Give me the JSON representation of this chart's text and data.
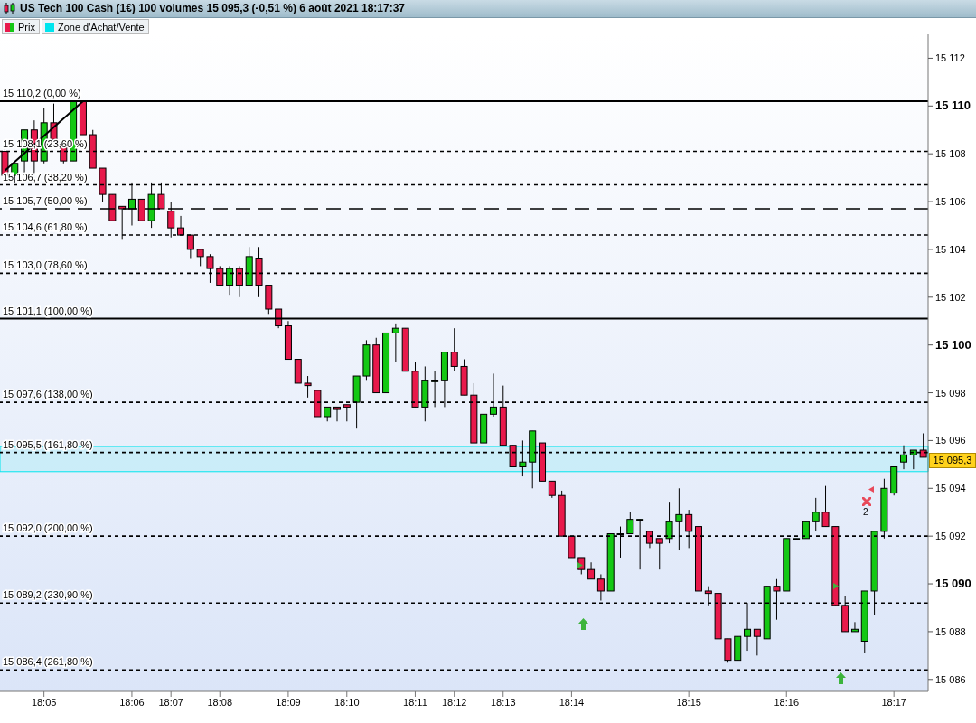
{
  "chart_data": {
    "type": "candlestick",
    "title": "US Tech 100 Cash (1€) 100 volumes 15 095,3 (-0,51 %) 6 août 2021 18:17:37",
    "categories": [
      null,
      null,
      null,
      null,
      "18:05",
      null,
      null,
      null,
      null,
      null,
      null,
      null,
      null,
      "18:06",
      null,
      null,
      null,
      "18:07",
      null,
      null,
      null,
      null,
      "18:08",
      null,
      null,
      null,
      null,
      null,
      null,
      "18:09",
      null,
      null,
      null,
      null,
      null,
      "18:10",
      null,
      null,
      null,
      null,
      null,
      null,
      "18:11",
      null,
      null,
      null,
      "18:12",
      null,
      null,
      null,
      null,
      "18:13",
      null,
      null,
      null,
      null,
      null,
      null,
      "18:14",
      null,
      null,
      null,
      null,
      null,
      null,
      null,
      null,
      null,
      null,
      null,
      "18:15",
      null,
      null,
      null,
      null,
      null,
      null,
      null,
      null,
      null,
      "18:16",
      null,
      null,
      null,
      null,
      null,
      null,
      null,
      null,
      null,
      null,
      "18:17",
      null,
      null,
      null
    ],
    "series": [
      {
        "type": "candlestick",
        "name": "Prix",
        "ohlc": [
          [
            15108.1,
            15108.2,
            15106.9,
            15107.1
          ],
          [
            15107.1,
            15107.6,
            15106.8,
            15107.6
          ],
          [
            15107.7,
            15109.0,
            15107.2,
            15109.0
          ],
          [
            15109.0,
            15109.4,
            15107.2,
            15107.7
          ],
          [
            15107.7,
            15109.9,
            15107.6,
            15109.3
          ],
          [
            15109.3,
            15110.1,
            15108.5,
            15108.6
          ],
          [
            15108.4,
            15108.5,
            15107.6,
            15107.7
          ],
          [
            15107.7,
            15110.2,
            15107.7,
            15110.2
          ],
          [
            15110.2,
            15110.2,
            15108.8,
            15108.8
          ],
          [
            15108.8,
            15109.0,
            15107.4,
            15107.4
          ],
          [
            15107.4,
            15107.4,
            15106.0,
            15106.3
          ],
          [
            15106.3,
            15106.3,
            15105.2,
            15105.2
          ],
          [
            15105.8,
            15105.8,
            15104.4,
            15105.7
          ],
          [
            15105.7,
            15106.8,
            15105.0,
            15106.1
          ],
          [
            15106.1,
            15106.1,
            15105.2,
            15105.2
          ],
          [
            15105.2,
            15106.8,
            15104.9,
            15106.3
          ],
          [
            15106.3,
            15106.8,
            15105.7,
            15105.7
          ],
          [
            15105.6,
            15106.0,
            15104.5,
            15104.9
          ],
          [
            15104.9,
            15105.4,
            15104.6,
            15104.6
          ],
          [
            15104.6,
            15104.6,
            15103.6,
            15104.0
          ],
          [
            15104.0,
            15104.0,
            15103.3,
            15103.7
          ],
          [
            15103.7,
            15103.8,
            15102.6,
            15103.2
          ],
          [
            15103.2,
            15103.3,
            15102.5,
            15102.5
          ],
          [
            15102.5,
            15103.3,
            15102.1,
            15103.2
          ],
          [
            15103.2,
            15103.3,
            15102.0,
            15102.5
          ],
          [
            15102.5,
            15104.1,
            15102.5,
            15103.7
          ],
          [
            15103.6,
            15104.1,
            15102.0,
            15102.5
          ],
          [
            15102.5,
            15102.5,
            15101.3,
            15101.5
          ],
          [
            15101.5,
            15101.5,
            15100.7,
            15100.8
          ],
          [
            15100.8,
            15101.0,
            15099.4,
            15099.4
          ],
          [
            15099.4,
            15099.4,
            15098.4,
            15098.4
          ],
          [
            15098.4,
            15098.7,
            15097.8,
            15098.3
          ],
          [
            15098.1,
            15098.1,
            15097.0,
            15097.0
          ],
          [
            15097.0,
            15097.4,
            15096.8,
            15097.4
          ],
          [
            15097.4,
            15097.4,
            15096.8,
            15097.3
          ],
          [
            15097.5,
            15097.5,
            15096.8,
            15097.4
          ],
          [
            15097.6,
            15098.7,
            15096.5,
            15098.7
          ],
          [
            15098.7,
            15100.2,
            15098.5,
            15100.0
          ],
          [
            15100.0,
            15100.3,
            15098.0,
            15098.0
          ],
          [
            15098.0,
            15100.5,
            15098.0,
            15100.5
          ],
          [
            15100.5,
            15100.9,
            15099.3,
            15100.7
          ],
          [
            15100.7,
            15100.7,
            15098.9,
            15098.9
          ],
          [
            15098.9,
            15099.3,
            15097.4,
            15097.4
          ],
          [
            15097.4,
            15099.1,
            15096.8,
            15098.5
          ],
          [
            15098.5,
            15098.9,
            15097.4,
            15098.5
          ],
          [
            15098.5,
            15099.7,
            15097.4,
            15099.7
          ],
          [
            15099.7,
            15100.7,
            15098.9,
            15099.1
          ],
          [
            15099.1,
            15099.4,
            15097.9,
            15097.9
          ],
          [
            15097.9,
            15098.4,
            15095.9,
            15095.9
          ],
          [
            15095.9,
            15097.1,
            15095.9,
            15097.1
          ],
          [
            15097.1,
            15098.8,
            15097.0,
            15097.4
          ],
          [
            15097.4,
            15098.3,
            15095.8,
            15095.8
          ],
          [
            15095.8,
            15095.8,
            15094.9,
            15094.9
          ],
          [
            15094.9,
            15096.0,
            15094.5,
            15095.1
          ],
          [
            15095.1,
            15096.4,
            15094.0,
            15096.4
          ],
          [
            15095.9,
            15095.9,
            15094.3,
            15094.3
          ],
          [
            15094.3,
            15094.3,
            15093.6,
            15093.7
          ],
          [
            15093.7,
            15093.9,
            15092.0,
            15092.0
          ],
          [
            15092.0,
            15092.0,
            15091.1,
            15091.1
          ],
          [
            15091.1,
            15091.1,
            15090.4,
            15090.6
          ],
          [
            15090.6,
            15090.9,
            15090.2,
            15090.2
          ],
          [
            15090.2,
            15090.4,
            15089.3,
            15089.7
          ],
          [
            15089.7,
            15092.1,
            15089.7,
            15092.1
          ],
          [
            15092.1,
            15092.4,
            15091.1,
            15092.1
          ],
          [
            15092.1,
            15093.0,
            15092.1,
            15092.7
          ],
          [
            15092.7,
            15092.7,
            15090.6,
            15092.7
          ],
          [
            15092.2,
            15092.2,
            15091.5,
            15091.7
          ],
          [
            15091.9,
            15091.9,
            15090.6,
            15091.7
          ],
          [
            15091.9,
            15093.4,
            15091.7,
            15092.6
          ],
          [
            15092.6,
            15094.0,
            15091.4,
            15092.9
          ],
          [
            15092.9,
            15093.1,
            15091.5,
            15092.2
          ],
          [
            15092.4,
            15092.4,
            15089.7,
            15089.7
          ],
          [
            15089.7,
            15089.9,
            15089.1,
            15089.6
          ],
          [
            15089.6,
            15089.6,
            15087.7,
            15087.7
          ],
          [
            15087.7,
            15087.7,
            15086.7,
            15086.8
          ],
          [
            15086.8,
            15087.8,
            15086.8,
            15087.8
          ],
          [
            15087.8,
            15089.2,
            15087.2,
            15088.1
          ],
          [
            15088.1,
            15088.1,
            15087.0,
            15087.8
          ],
          [
            15087.7,
            15089.9,
            15087.7,
            15089.9
          ],
          [
            15089.9,
            15090.2,
            15088.5,
            15089.7
          ],
          [
            15089.7,
            15091.9,
            15089.7,
            15091.9
          ],
          [
            15091.9,
            15091.9,
            15091.9,
            15091.9
          ],
          [
            15091.9,
            15092.6,
            15091.9,
            15092.6
          ],
          [
            15092.6,
            15093.6,
            15092.2,
            15093.0
          ],
          [
            15093.0,
            15094.1,
            15092.4,
            15092.4
          ],
          [
            15092.4,
            15092.4,
            15089.1,
            15089.1
          ],
          [
            15089.1,
            15089.5,
            15088.0,
            15088.0
          ],
          [
            15088.0,
            15088.4,
            15088.0,
            15088.1
          ],
          [
            15087.6,
            15089.7,
            15087.1,
            15089.7
          ],
          [
            15089.7,
            15092.2,
            15088.7,
            15092.2
          ],
          [
            15092.2,
            15094.4,
            15091.9,
            15094.0
          ],
          [
            15093.8,
            15094.9,
            15093.7,
            15094.9
          ],
          [
            15095.1,
            15095.8,
            15094.8,
            15095.4
          ],
          [
            15095.4,
            15095.6,
            15094.8,
            15095.6
          ],
          [
            15095.6,
            15096.3,
            15095.3,
            15095.3
          ]
        ],
        "colors": [
          "#e8194b",
          "#14c814",
          "#14c814",
          "#e8194b",
          "#14c814",
          "#e8194b",
          "#e8194b",
          "#14c814",
          "#e8194b",
          "#e8194b",
          "#e8194b",
          "#e8194b",
          "#e8194b",
          "#14c814",
          "#e8194b",
          "#14c814",
          "#e8194b",
          "#e8194b",
          "#e8194b",
          "#e8194b",
          "#e8194b",
          "#e8194b",
          "#e8194b",
          "#14c814",
          "#e8194b",
          "#14c814",
          "#e8194b",
          "#e8194b",
          "#e8194b",
          "#e8194b",
          "#e8194b",
          "#e8194b",
          "#e8194b",
          "#14c814",
          "#e8194b",
          "#e8194b",
          "#14c814",
          "#14c814",
          "#e8194b",
          "#14c814",
          "#14c814",
          "#e8194b",
          "#e8194b",
          "#14c814",
          "#14c814",
          "#14c814",
          "#e8194b",
          "#e8194b",
          "#e8194b",
          "#14c814",
          "#14c814",
          "#e8194b",
          "#e8194b",
          "#14c814",
          "#14c814",
          "#e8194b",
          "#e8194b",
          "#e8194b",
          "#e8194b",
          "#e8194b",
          "#e8194b",
          "#e8194b",
          "#14c814",
          "#14c814",
          "#14c814",
          "#14c814",
          "#e8194b",
          "#e8194b",
          "#14c814",
          "#14c814",
          "#e8194b",
          "#e8194b",
          "#e8194b",
          "#e8194b",
          "#e8194b",
          "#14c814",
          "#14c814",
          "#e8194b",
          "#14c814",
          "#e8194b",
          "#14c814",
          "#14c814",
          "#14c814",
          "#14c814",
          "#e8194b",
          "#e8194b",
          "#e8194b",
          "#14c814",
          "#14c814",
          "#14c814",
          "#14c814",
          "#14c814",
          "#14c814",
          "#14c814",
          "#e8194b"
        ]
      },
      {
        "type": "line",
        "color": "#000000",
        "values": [
          15107.3,
          null,
          null,
          null,
          null,
          null,
          null,
          null,
          15110.2,
          null,
          null,
          null,
          null,
          null,
          null,
          null,
          null,
          null,
          null,
          null,
          null,
          null,
          null,
          null,
          null,
          null,
          null,
          null,
          null,
          null,
          null,
          null,
          null,
          null,
          null,
          null,
          null,
          null,
          null,
          null,
          null,
          null,
          null,
          null,
          null,
          null,
          null,
          null,
          null,
          null,
          null,
          null,
          null,
          null,
          null,
          null,
          null,
          null,
          null,
          null,
          null,
          null,
          null,
          null,
          null,
          null,
          null,
          null,
          null,
          null,
          null,
          null,
          null,
          null,
          null,
          null,
          null,
          null,
          null,
          null,
          null,
          null,
          null,
          null,
          null,
          null,
          null,
          null,
          null,
          null,
          null,
          null,
          null,
          null,
          null
        ]
      }
    ],
    "ylim": [
      15085.5,
      15113
    ],
    "yticks": [
      {
        "value": 15086,
        "label": "15 086"
      },
      {
        "value": 15088,
        "label": "15 088"
      },
      {
        "value": 15090,
        "label": "15 090"
      },
      {
        "value": 15092,
        "label": "15 092"
      },
      {
        "value": 15094,
        "label": "15 094"
      },
      {
        "value": 15096,
        "label": "15 096"
      },
      {
        "value": 15098,
        "label": "15 098"
      },
      {
        "value": 15100,
        "label": "15 100"
      },
      {
        "value": 15102,
        "label": "15 102"
      },
      {
        "value": 15104,
        "label": "15 104"
      },
      {
        "value": 15106,
        "label": "15 106"
      },
      {
        "value": 15108,
        "label": "15 108"
      },
      {
        "value": 15110,
        "label": "15 110"
      },
      {
        "value": 15112,
        "label": "15 112"
      }
    ],
    "ref_lines": [
      {
        "axis": "y",
        "value": 15110.2,
        "label": "15 110,2 (0,00 %)",
        "color": "#000000",
        "line_style": "solid"
      },
      {
        "axis": "y",
        "value": 15108.1,
        "label": "15 108,1 (23,60 %)",
        "color": "#000000",
        "line_style": "dotted"
      },
      {
        "axis": "y",
        "value": 15106.7,
        "label": "15 106,7 (38,20 %)",
        "color": "#000000",
        "line_style": "dotted"
      },
      {
        "axis": "y",
        "value": 15105.7,
        "label": "15 105,7 (50,00 %)",
        "color": "#000000",
        "line_style": "dashed"
      },
      {
        "axis": "y",
        "value": 15104.6,
        "label": "15 104,6 (61,80 %)",
        "color": "#000000",
        "line_style": "dotted"
      },
      {
        "axis": "y",
        "value": 15103.0,
        "label": "15 103,0 (78,60 %)",
        "color": "#000000",
        "line_style": "dotted"
      },
      {
        "axis": "y",
        "value": 15101.1,
        "label": "15 101,1 (100,00 %)",
        "color": "#000000",
        "line_style": "solid"
      },
      {
        "axis": "y",
        "value": 15097.6,
        "label": "15 097,6 (138,00 %)",
        "color": "#000000",
        "line_style": "dotted"
      },
      {
        "axis": "y",
        "value": 15095.5,
        "label": "15 095,5 (161,80 %)",
        "color": "#000000",
        "line_style": "dotted"
      },
      {
        "axis": "y",
        "value": 15092.0,
        "label": "15 092,0 (200,00 %)",
        "color": "#000000",
        "line_style": "dotted"
      },
      {
        "axis": "y",
        "value": 15089.2,
        "label": "15 089,2 (230,90 %)",
        "color": "#000000",
        "line_style": "dotted"
      },
      {
        "axis": "y",
        "value": 15086.4,
        "label": "15 086,4 (261,80 %)",
        "color": "#000000",
        "line_style": "dotted"
      }
    ],
    "bands": [
      {
        "axis": "y",
        "from": 15094.7,
        "to": 15095.75,
        "label": "Zone d'Achat/Vente",
        "color": "#00e5ee"
      }
    ],
    "annotations": [
      "2",
      "15 095,3"
    ],
    "legend": "top left"
  }
}
